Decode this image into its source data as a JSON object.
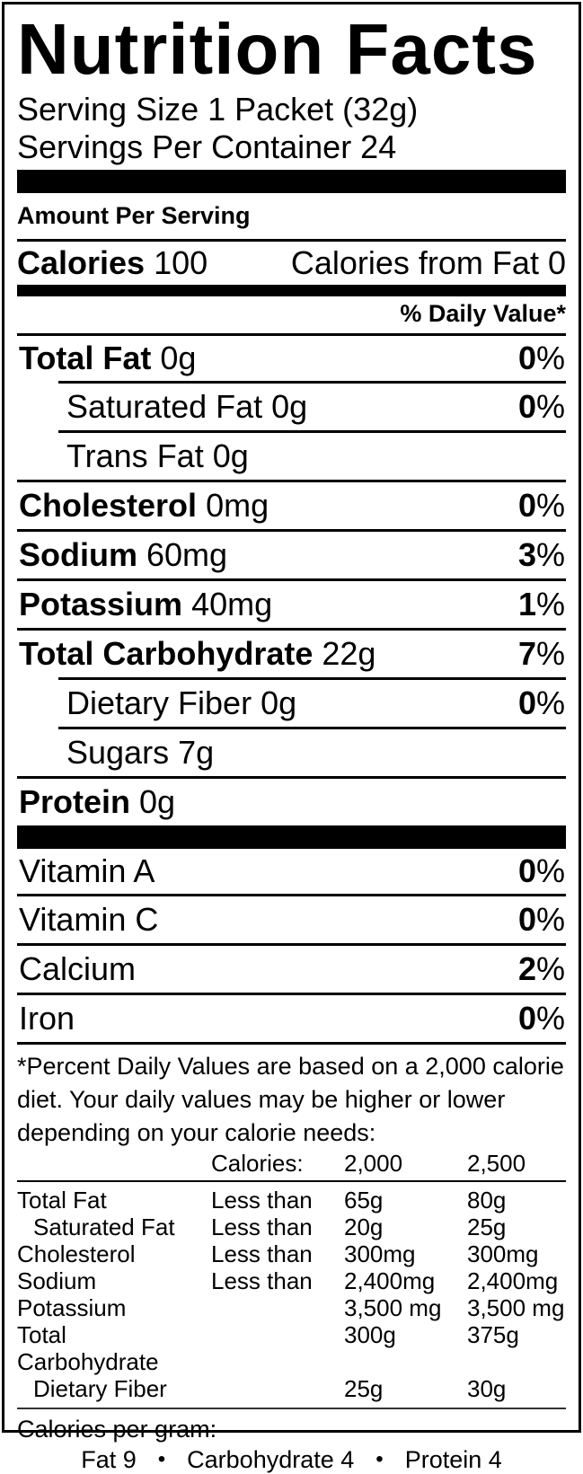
{
  "colors": {
    "ink": "#000000",
    "background": "#ffffff"
  },
  "label": {
    "title": "Nutrition Facts",
    "serving_size": "Serving Size 1 Packet (32g)",
    "servings_per_container": "Servings Per Container 24",
    "amount_per_serving": "Amount Per Serving",
    "percent_sign": "%",
    "calories": {
      "label": "Calories",
      "value": "100",
      "from_fat_label": "Calories from Fat",
      "from_fat_value": "0"
    },
    "daily_value_header": "% Daily Value*",
    "nutrients": [
      {
        "name": "Total Fat",
        "amount": "0g",
        "dv": "0",
        "bold": true,
        "indent": false
      },
      {
        "name": "Saturated Fat",
        "amount": "0g",
        "dv": "0",
        "bold": false,
        "indent": true
      },
      {
        "name": "Trans Fat",
        "amount": "0g",
        "dv": "",
        "bold": false,
        "indent": true
      },
      {
        "name": "Cholesterol",
        "amount": "0mg",
        "dv": "0",
        "bold": true,
        "indent": false
      },
      {
        "name": "Sodium",
        "amount": "60mg",
        "dv": "3",
        "bold": true,
        "indent": false
      },
      {
        "name": "Potassium",
        "amount": "40mg",
        "dv": "1",
        "bold": true,
        "indent": false
      },
      {
        "name": "Total Carbohydrate",
        "amount": "22g",
        "dv": "7",
        "bold": true,
        "indent": false
      },
      {
        "name": "Dietary Fiber",
        "amount": "0g",
        "dv": "0",
        "bold": false,
        "indent": true
      },
      {
        "name": "Sugars",
        "amount": "7g",
        "dv": "",
        "bold": false,
        "indent": true
      },
      {
        "name": "Protein",
        "amount": "0g",
        "dv": "",
        "bold": true,
        "indent": false
      }
    ],
    "vitamins": [
      {
        "name": "Vitamin A",
        "dv": "0"
      },
      {
        "name": "Vitamin C",
        "dv": "0"
      },
      {
        "name": "Calcium",
        "dv": "2"
      },
      {
        "name": "Iron",
        "dv": "0"
      }
    ],
    "footnote": "*Percent Daily Values are based on a 2,000 calorie diet. Your daily values may be higher or lower depending on your calorie needs:",
    "dv_table": {
      "header": {
        "calories_label": "Calories:",
        "col_2000": "2,000",
        "col_2500": "2,500"
      },
      "rows": [
        {
          "name": "Total Fat",
          "qualifier": "Less than",
          "v2000": "65g",
          "v2500": "80g",
          "indent": false
        },
        {
          "name": "Saturated Fat",
          "qualifier": "Less than",
          "v2000": "20g",
          "v2500": "25g",
          "indent": true
        },
        {
          "name": "Cholesterol",
          "qualifier": "Less than",
          "v2000": "300mg",
          "v2500": "300mg",
          "indent": false
        },
        {
          "name": "Sodium",
          "qualifier": "Less than",
          "v2000": "2,400mg",
          "v2500": "2,400mg",
          "indent": false
        },
        {
          "name": "Potassium",
          "qualifier": "",
          "v2000": "3,500 mg",
          "v2500": "3,500 mg",
          "indent": false
        },
        {
          "name": "Total Carbohydrate",
          "qualifier": "",
          "v2000": "300g",
          "v2500": "375g",
          "indent": false
        },
        {
          "name": "Dietary Fiber",
          "qualifier": "",
          "v2000": "25g",
          "v2500": "30g",
          "indent": true
        }
      ]
    },
    "calories_per_gram": {
      "label": "Calories per gram:",
      "bullet": "•",
      "items": [
        "Fat 9",
        "Carbohydrate 4",
        "Protein 4"
      ]
    }
  }
}
